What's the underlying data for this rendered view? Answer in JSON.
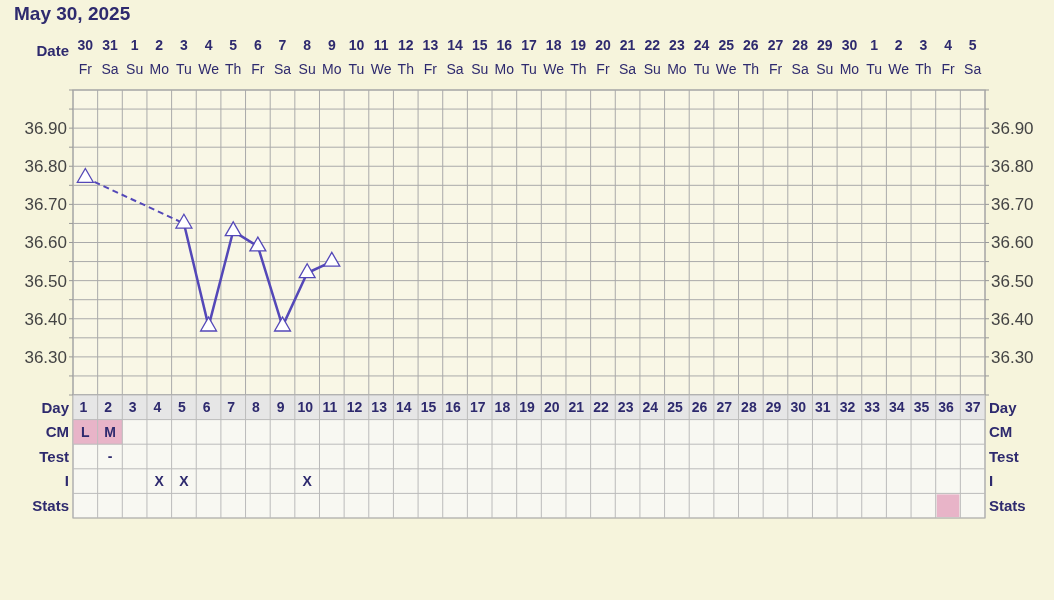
{
  "chart_data": {
    "type": "line",
    "title": "May 30, 2025",
    "categories": [
      "30 Fr",
      "31 Sa",
      "1 Su",
      "2 Mo",
      "3 Tu",
      "4 We",
      "5 Th",
      "6 Fr",
      "7 Sa",
      "8 Su",
      "9 Mo",
      "10 Tu",
      "11 We",
      "12 Th",
      "13 Fr",
      "14 Sa",
      "15 Su",
      "16 Mo",
      "17 Tu",
      "18 We",
      "19 Th",
      "20 Fr",
      "21 Sa",
      "22 Su",
      "23 Mo",
      "24 Tu",
      "25 We",
      "26 Th",
      "27 Fr",
      "28 Sa",
      "29 Su",
      "30 Mo",
      "1 Tu",
      "2 We",
      "3 Th",
      "4 Fr",
      "5 Sa"
    ],
    "series": [
      {
        "color": "#5448b8",
        "values": [
          36.77,
          null,
          null,
          null,
          36.65,
          36.38,
          36.63,
          36.59,
          36.38,
          36.52,
          36.55,
          null,
          null,
          null,
          null,
          null,
          null,
          null,
          null,
          null,
          null,
          null,
          null,
          null,
          null,
          null,
          null,
          null,
          null,
          null,
          null,
          null,
          null,
          null,
          null,
          null,
          null
        ]
      }
    ],
    "ylim": [
      36.2,
      37.0
    ],
    "yticks": [
      {
        "value": 36.2,
        "label": null
      },
      {
        "value": 36.25,
        "label": null
      },
      {
        "value": 36.3,
        "label": "36.30"
      },
      {
        "value": 36.35,
        "label": null
      },
      {
        "value": 36.4,
        "label": "36.40"
      },
      {
        "value": 36.45,
        "label": null
      },
      {
        "value": 36.5,
        "label": "36.50"
      },
      {
        "value": 36.55,
        "label": null
      },
      {
        "value": 36.6,
        "label": "36.60"
      },
      {
        "value": 36.65,
        "label": null
      },
      {
        "value": 36.7,
        "label": "36.70"
      },
      {
        "value": 36.75,
        "label": null
      },
      {
        "value": 36.8,
        "label": "36.80"
      },
      {
        "value": 36.85,
        "label": null
      },
      {
        "value": 36.9,
        "label": "36.90"
      },
      {
        "value": 36.95,
        "label": null
      },
      {
        "value": 37.0,
        "label": null
      }
    ],
    "y2lim": [
      36.2,
      37.0
    ],
    "y2ticks": [
      {
        "value": 36.2,
        "label": null
      },
      {
        "value": 36.25,
        "label": null
      },
      {
        "value": 36.3,
        "label": "36.30"
      },
      {
        "value": 36.35,
        "label": null
      },
      {
        "value": 36.4,
        "label": "36.40"
      },
      {
        "value": 36.45,
        "label": null
      },
      {
        "value": 36.5,
        "label": "36.50"
      },
      {
        "value": 36.55,
        "label": null
      },
      {
        "value": 36.6,
        "label": "36.60"
      },
      {
        "value": 36.65,
        "label": null
      },
      {
        "value": 36.7,
        "label": "36.70"
      },
      {
        "value": 36.75,
        "label": null
      },
      {
        "value": 36.8,
        "label": "36.80"
      },
      {
        "value": 36.85,
        "label": null
      },
      {
        "value": 36.9,
        "label": "36.90"
      },
      {
        "value": 36.95,
        "label": null
      },
      {
        "value": 37.0,
        "label": null
      }
    ],
    "grid": true,
    "marker": "triangle",
    "line_style": "solid",
    "annotations": [
      "Date",
      "Day",
      "1 2 3 4 5 6 7 8 9 10 11 12 13 14 15 16 17 18 19 20 21 22 23 24 25 26 27 28 29 30 31 32 33 34 35 36 37",
      "CM",
      "L",
      "M",
      "Test",
      "-",
      "I",
      "X",
      "X",
      "X",
      "Stats"
    ]
  }
}
